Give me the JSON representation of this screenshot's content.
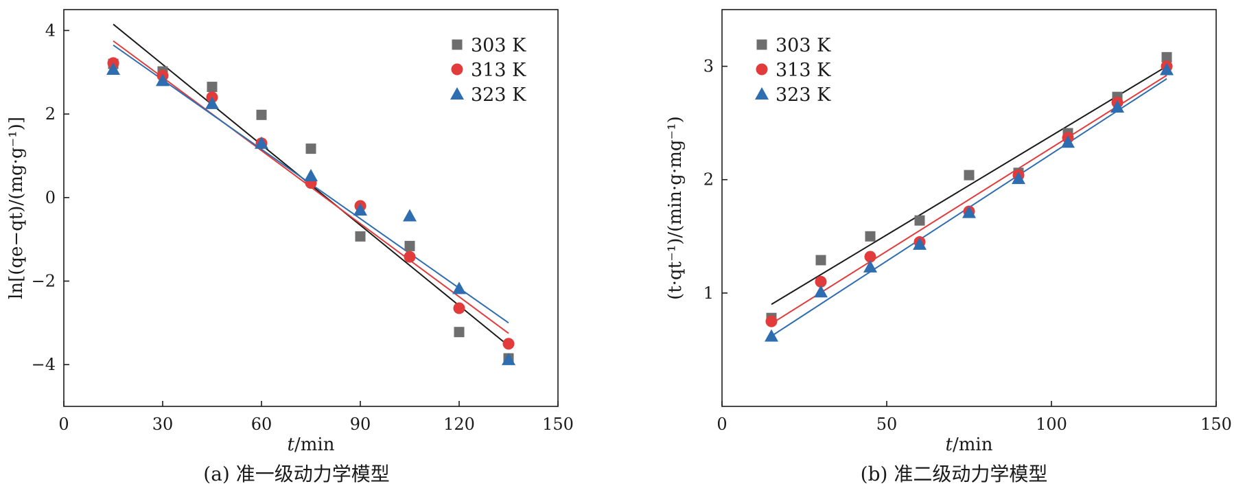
{
  "chart_data": [
    {
      "type": "scatter",
      "caption": "(a) 准一级动力学模型",
      "xlabel": {
        "var": "t",
        "unit": "/min"
      },
      "ylabel": "ln[(qe−qt)/(mg·g⁻¹)]",
      "xlim": [
        0,
        150
      ],
      "ylim": [
        -5,
        4.5
      ],
      "xticks": [
        0,
        30,
        60,
        90,
        120,
        150
      ],
      "yticks": [
        -4,
        -2,
        0,
        2,
        4
      ],
      "legend_position": "top-right",
      "series": [
        {
          "name": "303 K",
          "marker": "square",
          "color": "#6e6e6e",
          "line_color": "#1a1a1a",
          "x": [
            15,
            30,
            45,
            60,
            75,
            90,
            105,
            120,
            135
          ],
          "y": [
            3.2,
            3.02,
            2.65,
            1.98,
            1.17,
            -0.93,
            -1.16,
            -3.22,
            -3.85
          ],
          "fit": {
            "x": [
              15,
              135
            ],
            "y": [
              4.15,
              -3.55
            ]
          }
        },
        {
          "name": "313 K",
          "marker": "circle",
          "color": "#e23b3b",
          "line_color": "#e23b3b",
          "x": [
            15,
            30,
            45,
            60,
            75,
            90,
            105,
            120,
            135
          ],
          "y": [
            3.22,
            2.92,
            2.4,
            1.3,
            0.35,
            -0.2,
            -1.42,
            -2.65,
            -3.5
          ],
          "fit": {
            "x": [
              15,
              135
            ],
            "y": [
              3.75,
              -3.25
            ]
          }
        },
        {
          "name": "323 K",
          "marker": "triangle",
          "color": "#2e6db0",
          "line_color": "#2e6db0",
          "x": [
            15,
            30,
            45,
            60,
            75,
            90,
            105,
            120,
            135
          ],
          "y": [
            3.07,
            2.8,
            2.25,
            1.3,
            0.52,
            -0.3,
            -0.44,
            -2.18,
            -3.88
          ],
          "fit": {
            "x": [
              15,
              135
            ],
            "y": [
              3.65,
              -3.0
            ]
          }
        }
      ]
    },
    {
      "type": "scatter",
      "caption": "(b) 准二级动力学模型",
      "xlabel": {
        "var": "t",
        "unit": "/min"
      },
      "ylabel": "(t·qt⁻¹)/(min·g·mg⁻¹)",
      "xlim": [
        0,
        150
      ],
      "ylim": [
        0,
        3.5
      ],
      "xticks": [
        0,
        50,
        100,
        150
      ],
      "yticks": [
        1,
        2,
        3
      ],
      "legend_position": "top-left",
      "series": [
        {
          "name": "303 K",
          "marker": "square",
          "color": "#6e6e6e",
          "line_color": "#1a1a1a",
          "x": [
            15,
            30,
            45,
            60,
            75,
            90,
            105,
            120,
            135
          ],
          "y": [
            0.78,
            1.29,
            1.5,
            1.64,
            2.04,
            2.06,
            2.41,
            2.73,
            3.08
          ],
          "fit": {
            "x": [
              15,
              135
            ],
            "y": [
              0.9,
              3.0
            ]
          }
        },
        {
          "name": "313 K",
          "marker": "circle",
          "color": "#e23b3b",
          "line_color": "#e23b3b",
          "x": [
            15,
            30,
            45,
            60,
            75,
            90,
            105,
            120,
            135
          ],
          "y": [
            0.75,
            1.1,
            1.32,
            1.45,
            1.72,
            2.04,
            2.37,
            2.68,
            3.0
          ],
          "fit": {
            "x": [
              15,
              135
            ],
            "y": [
              0.73,
              2.92
            ]
          }
        },
        {
          "name": "323 K",
          "marker": "triangle",
          "color": "#2e6db0",
          "line_color": "#2e6db0",
          "x": [
            15,
            30,
            45,
            60,
            75,
            90,
            105,
            120,
            135
          ],
          "y": [
            0.62,
            1.01,
            1.23,
            1.43,
            1.71,
            2.01,
            2.33,
            2.64,
            2.97
          ],
          "fit": {
            "x": [
              15,
              135
            ],
            "y": [
              0.62,
              2.89
            ]
          }
        }
      ]
    }
  ]
}
